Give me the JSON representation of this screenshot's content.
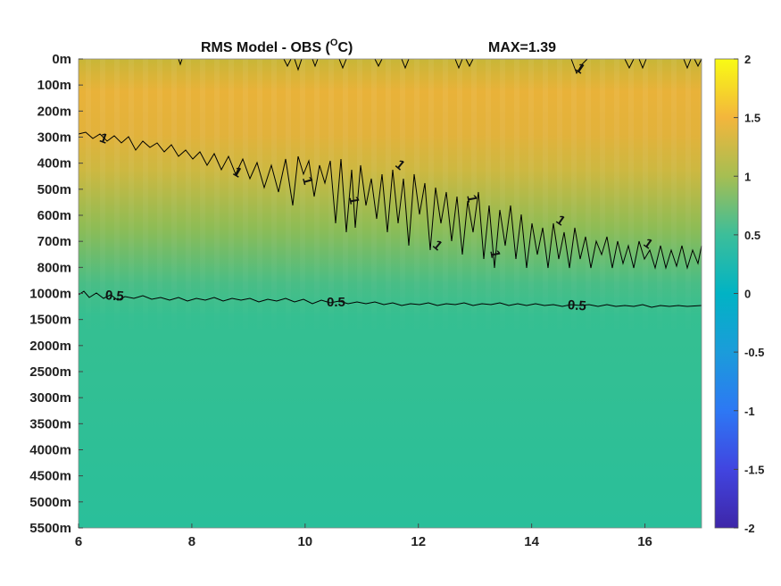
{
  "chart_data": {
    "type": "heatmap",
    "title": "RMS Model - OBS (",
    "title_unit_sup": "O",
    "title_unit": "C)",
    "max_label": "MAX=1.39",
    "xlabel": "",
    "ylabel": "",
    "x_ticks": [
      "6",
      "8",
      "10",
      "12",
      "14",
      "16"
    ],
    "x_tick_values": [
      6,
      8,
      10,
      12,
      14,
      16
    ],
    "xlim": [
      6,
      17
    ],
    "y_ticks": [
      "0m",
      "100m",
      "200m",
      "300m",
      "400m",
      "500m",
      "600m",
      "700m",
      "800m",
      "1000m",
      "1500m",
      "2000m",
      "2500m",
      "3000m",
      "3500m",
      "4000m",
      "4500m",
      "5000m",
      "5500m"
    ],
    "colorbar": {
      "range": [
        -2,
        2
      ],
      "ticks": [
        "2",
        "1.5",
        "1",
        "0.5",
        "0",
        "-0.5",
        "-1",
        "-1.5",
        "-2"
      ],
      "tick_values": [
        2,
        1.5,
        1,
        0.5,
        0,
        -0.5,
        -1,
        -1.5,
        -2
      ]
    },
    "depth_profile": {
      "levels": [
        "0m",
        "100m",
        "200m",
        "300m",
        "400m",
        "500m",
        "600m",
        "700m",
        "800m",
        "1000m",
        "1500m",
        "2000m",
        "2500m",
        "3000m",
        "3500m",
        "4000m",
        "4500m",
        "5000m",
        "5500m"
      ],
      "rms_values": [
        1.05,
        1.25,
        1.3,
        1.2,
        1.1,
        1.02,
        0.95,
        0.9,
        0.8,
        0.5,
        0.42,
        0.4,
        0.39,
        0.38,
        0.37,
        0.36,
        0.35,
        0.33,
        0.3
      ]
    },
    "contours": [
      {
        "label": "1",
        "level": 1.0
      },
      {
        "label": "0.5",
        "level": 0.5
      }
    ],
    "colors": {
      "line": "#000000"
    }
  }
}
